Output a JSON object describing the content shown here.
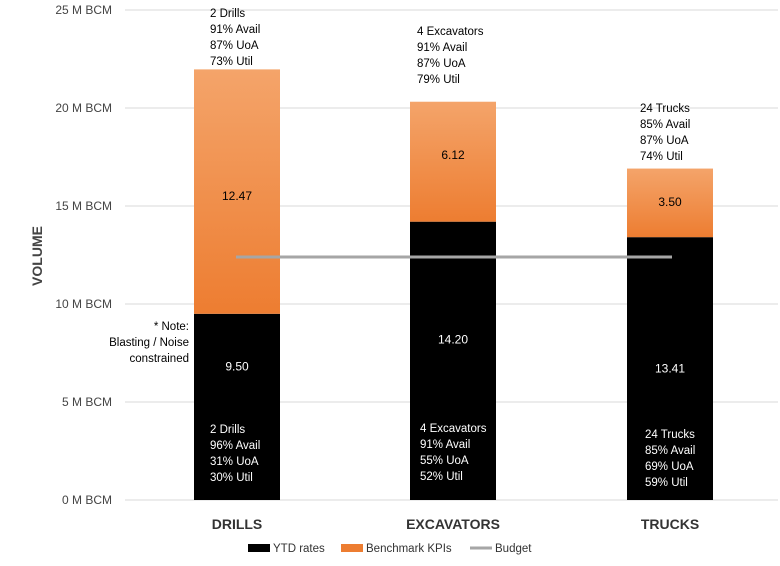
{
  "chart_data": {
    "type": "bar",
    "stacked": true,
    "categories": [
      "DRILLS",
      "EXCAVATORS",
      "TRUCKS"
    ],
    "series": [
      {
        "name": "YTD rates",
        "values": [
          9.5,
          14.2,
          13.41
        ],
        "labels": [
          "9.50",
          "14.20",
          "13.41"
        ],
        "color": "#000000"
      },
      {
        "name": "Benchmark KPIs",
        "values": [
          12.47,
          6.12,
          3.5
        ],
        "labels": [
          "12.47",
          "6.12",
          "3.50"
        ],
        "color": "#ED7D31"
      }
    ],
    "budget": {
      "name": "Budget",
      "value": 12.4,
      "color": "#A6A6A6"
    },
    "ylabel": "VOLUME",
    "ylim": [
      0,
      25
    ],
    "yticks": [
      0,
      5,
      10,
      15,
      20,
      25
    ],
    "ytick_labels": [
      "0 M BCM",
      "5 M BCM",
      "10 M BCM",
      "15 M BCM",
      "20 M BCM",
      "25 M BCM"
    ],
    "grid": true,
    "legend": {
      "position": "bottom"
    },
    "annotations": {
      "benchmark": [
        [
          "2 Drills",
          "91% Avail",
          "87% UoA",
          "73% Util"
        ],
        [
          "4 Excavators",
          "91% Avail",
          "87% UoA",
          "79% Util"
        ],
        [
          "24 Trucks",
          "85% Avail",
          "87% UoA",
          "74% Util"
        ]
      ],
      "ytd": [
        [
          "2 Drills",
          "96% Avail",
          "31% UoA",
          "30% Util"
        ],
        [
          "4 Excavators",
          "91% Avail",
          "55% UoA",
          "52% Util"
        ],
        [
          "24 Trucks",
          "85% Avail",
          "69% UoA",
          "59% Util"
        ]
      ],
      "note": [
        "* Note:",
        "Blasting / Noise",
        "constrained"
      ]
    }
  }
}
